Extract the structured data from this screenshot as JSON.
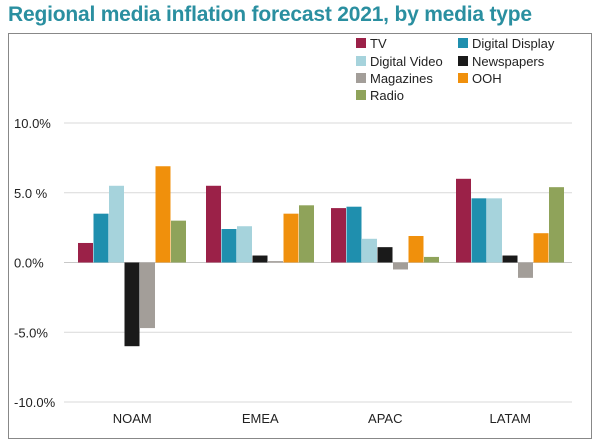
{
  "title": "Regional media inflation forecast 2021, by media type",
  "chart_data": {
    "type": "bar",
    "title": "Regional media inflation forecast 2021, by media type",
    "categories": [
      "NOAM",
      "EMEA",
      "APAC",
      "LATAM"
    ],
    "series": [
      {
        "name": "TV",
        "color": "#9b2148",
        "values": [
          1.4,
          5.5,
          3.9,
          6.0
        ]
      },
      {
        "name": "Digital Display",
        "color": "#1f8fae",
        "values": [
          3.5,
          2.4,
          4.0,
          4.6
        ]
      },
      {
        "name": "Digital Video",
        "color": "#a6d3dc",
        "values": [
          5.5,
          2.6,
          1.7,
          4.6
        ]
      },
      {
        "name": "Newspapers",
        "color": "#1a1a1a",
        "values": [
          -6.0,
          0.5,
          1.1,
          0.5
        ]
      },
      {
        "name": "Magazines",
        "color": "#a39e99",
        "values": [
          -4.7,
          0.1,
          -0.5,
          -1.1
        ]
      },
      {
        "name": "OOH",
        "color": "#f0900c",
        "values": [
          6.9,
          3.5,
          1.9,
          2.1
        ]
      },
      {
        "name": "Radio",
        "color": "#8fa35a",
        "values": [
          3.0,
          4.1,
          0.4,
          5.4
        ]
      }
    ],
    "ylim": [
      -10,
      10
    ],
    "yticks": [
      {
        "value": 10,
        "label": "10.0%"
      },
      {
        "value": 5,
        "label": "5.0 %"
      },
      {
        "value": 0,
        "label": "0.0%"
      },
      {
        "value": -5,
        "label": "-5.0%"
      },
      {
        "value": -10,
        "label": "-10.0%"
      }
    ],
    "grid": true,
    "legend": "top-right",
    "xlabel": "",
    "ylabel": ""
  }
}
